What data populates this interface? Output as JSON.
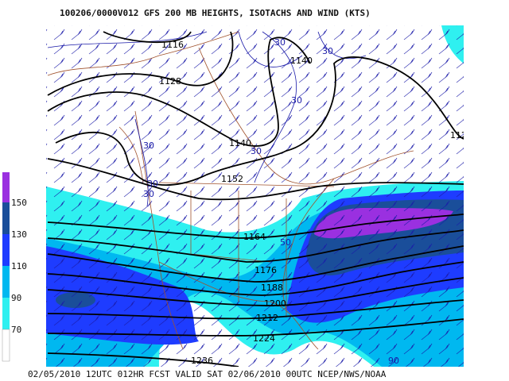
{
  "header": {
    "title": "100206/0000V012 GFS 200 MB  HEIGHTS, ISOTACHS AND WIND (KTS)"
  },
  "footer": {
    "text": "02/05/2010 12UTC 012HR FCST VALID SAT 02/06/2010 00UTC  NCEP/NWS/NOAA"
  },
  "legend": {
    "labels": [
      "150",
      "130",
      "110",
      "90",
      "70"
    ]
  },
  "height_labels": [
    "1116",
    "1128",
    "1140",
    "1140",
    "1152",
    "1164",
    "1176",
    "1188",
    "1200",
    "1212",
    "1224",
    "1236",
    "112"
  ],
  "isotach_labels": [
    "30",
    "30",
    "30",
    "30",
    "30",
    "30",
    "30",
    "50",
    "90"
  ]
}
